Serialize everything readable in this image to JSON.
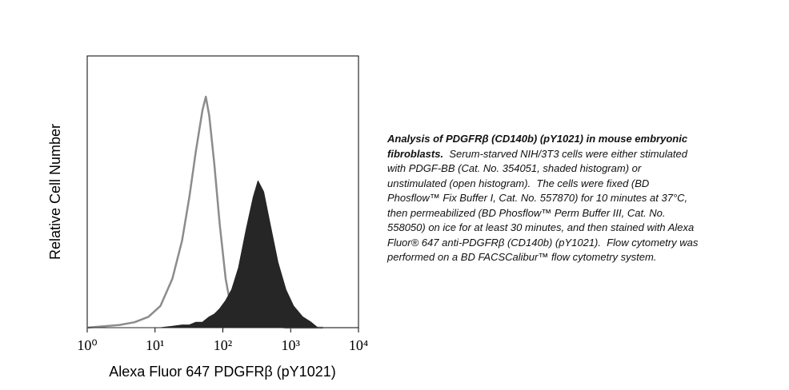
{
  "chart_data": {
    "type": "area",
    "x_label": "Alexa Fluor 647 PDGFRβ (pY1021)",
    "y_label": "Relative Cell Number",
    "x": [
      1,
      3,
      5,
      8,
      12,
      18,
      25,
      32,
      40,
      50,
      56,
      63,
      75,
      90,
      110,
      135,
      170,
      220,
      280,
      330,
      400,
      500,
      650,
      850,
      1100,
      1500,
      2000,
      2500,
      3000
    ],
    "series": [
      {
        "color": "#8c8c8c",
        "filled": false,
        "values": [
          0,
          1,
          2,
          4,
          8,
          18,
          32,
          48,
          65,
          80,
          85,
          78,
          60,
          38,
          18,
          6,
          3,
          2,
          1,
          1,
          1,
          0.5,
          0.5,
          0,
          0,
          0,
          0,
          0,
          0
        ]
      },
      {
        "color": "#262626",
        "filled": true,
        "values": [
          0,
          0,
          0,
          0,
          0,
          0.5,
          1,
          1,
          2,
          2,
          3,
          4,
          5,
          7,
          10,
          14,
          22,
          36,
          48,
          54,
          50,
          38,
          24,
          14,
          8,
          4,
          2,
          0,
          0
        ]
      }
    ],
    "xlog": true,
    "xlim": [
      1,
      10000
    ],
    "xticks": [
      {
        "value": 1,
        "label": "10⁰"
      },
      {
        "value": 10,
        "label": "10¹"
      },
      {
        "value": 100,
        "label": "10²"
      },
      {
        "value": 1000,
        "label": "10³"
      },
      {
        "value": 10000,
        "label": "10⁴"
      }
    ],
    "ylim": [
      0,
      100
    ]
  },
  "caption": {
    "lead": "Analysis of PDGFRβ (CD140b) (pY1021) in mouse embryonic fibroblasts.",
    "body": "Serum-starved NIH/3T3 cells were either stimulated with PDGF-BB (Cat. No. 354051, shaded histogram) or unstimulated (open histogram).  The cells were fixed (BD Phosflow™ Fix Buffer I, Cat. No. 557870) for 10 minutes at 37°C, then permeabilized (BD Phosflow™ Perm Buffer III, Cat. No. 558050) on ice for at least 30 minutes, and then stained with Alexa Fluor® 647 anti-PDGFRβ (CD140b) (pY1021).  Flow cytometry was performed on a BD FACSCalibur™ flow cytometry system."
  }
}
